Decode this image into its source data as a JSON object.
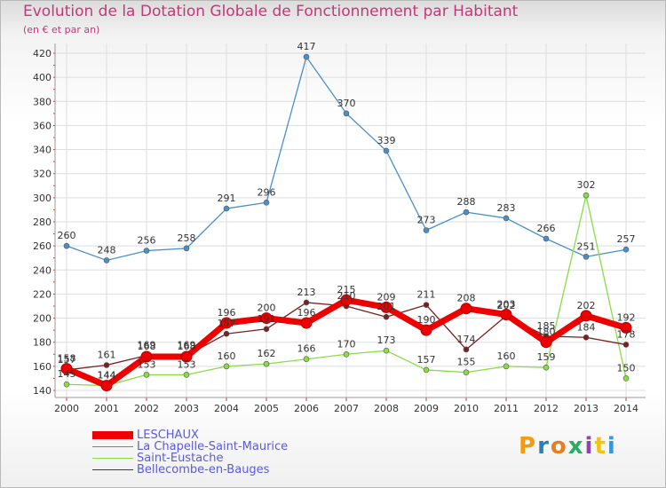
{
  "header": {
    "title": "Evolution de la Dotation Globale de Fonctionnement par Habitant",
    "subtitle": "(en € et par an)"
  },
  "brand": {
    "text": "Proxiti",
    "colors": [
      "#f39c12",
      "#2980b9",
      "#e67e22",
      "#27ae60",
      "#8e44ad",
      "#f1c40f",
      "#3498db"
    ]
  },
  "chart_data": {
    "type": "line",
    "title": "Evolution de la Dotation Globale de Fonctionnement par Habitant",
    "subtitle": "(en € et par an)",
    "xlabel": "",
    "ylabel": "",
    "categories": [
      "2000",
      "2001",
      "2002",
      "2003",
      "2004",
      "2005",
      "2006",
      "2007",
      "2008",
      "2009",
      "2010",
      "2011",
      "2012",
      "2013",
      "2014"
    ],
    "ylim": [
      140,
      420
    ],
    "yticks": [
      140,
      160,
      180,
      200,
      220,
      240,
      260,
      280,
      300,
      320,
      340,
      360,
      380,
      400,
      420
    ],
    "grid": true,
    "legend_position": "bottom-left",
    "series": [
      {
        "name": "LESCHAUX",
        "color": "#ee0000",
        "values": [
          158,
          144,
          168,
          168,
          196,
          200,
          196,
          215,
          209,
          190,
          208,
          203,
          180,
          202,
          192
        ],
        "labels": [
          "158",
          "144",
          "168",
          "168",
          "196",
          "200",
          "196",
          "215",
          "209",
          "190",
          "208",
          "203",
          "180",
          "202",
          "192"
        ]
      },
      {
        "name": "La Chapelle-Saint-Maurice",
        "color": "#4a90c8",
        "values": [
          260,
          248,
          256,
          258,
          291,
          296,
          417,
          370,
          339,
          273,
          288,
          283,
          266,
          251,
          257
        ],
        "labels": [
          "260",
          "248",
          "256",
          "258",
          "291",
          "296",
          "417",
          "370",
          "339",
          "273",
          "288",
          "283",
          "266",
          "251",
          "257"
        ]
      },
      {
        "name": "Saint-Eustache",
        "color": "#88dd44",
        "values": [
          145,
          144,
          153,
          153,
          160,
          162,
          166,
          170,
          173,
          157,
          155,
          160,
          159,
          302,
          150
        ],
        "labels": [
          "145",
          "144",
          "153",
          "153",
          "160",
          "162",
          "166",
          "170",
          "173",
          "157",
          "155",
          "160",
          "159",
          "302",
          "150"
        ]
      },
      {
        "name": "Bellecombe-en-Bauges",
        "color": "#7a1f22",
        "values": [
          157,
          161,
          169,
          169,
          187,
          191,
          213,
          210,
          201,
          211,
          174,
          202,
          185,
          184,
          178
        ],
        "labels": [
          "157",
          "161",
          "169",
          "169",
          "187",
          "191",
          "213",
          "210",
          "201",
          "211",
          "174",
          "202",
          "185",
          "184",
          "178"
        ]
      }
    ]
  }
}
